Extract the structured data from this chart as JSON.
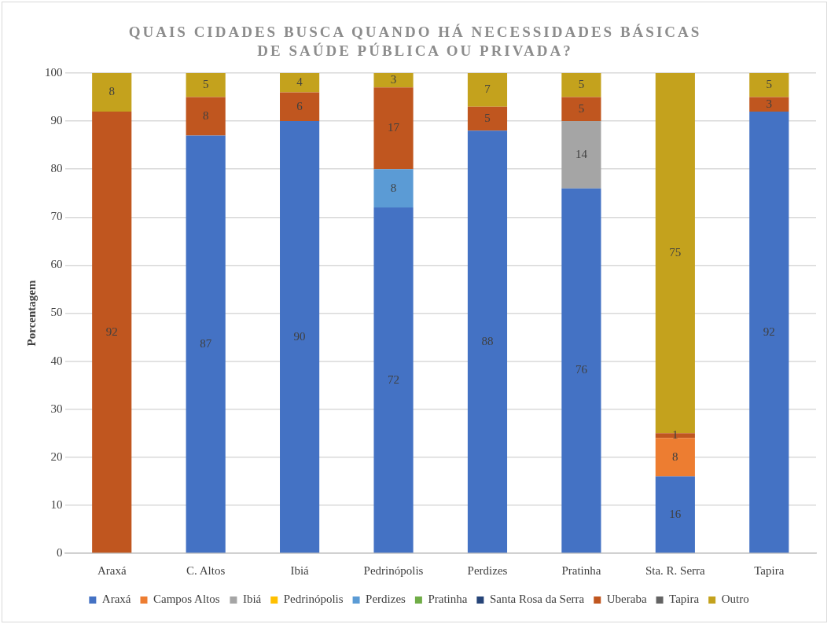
{
  "chart_data": {
    "type": "bar",
    "stacked": true,
    "title": "QUAIS CIDADES BUSCA QUANDO HÁ NECESSIDADES BÁSICAS DE SAÚDE PÚBLICA OU PRIVADA?",
    "ylabel": "Porcentagem",
    "categories": [
      "Araxá",
      "C. Altos",
      "Ibiá",
      "Pedrinópolis",
      "Perdizes",
      "Pratinha",
      "Sta. R. Serra",
      "Tapira"
    ],
    "series": [
      {
        "name": "Araxá",
        "color": "#4472c4",
        "values": [
          null,
          87,
          90,
          72,
          88,
          76,
          16,
          92
        ]
      },
      {
        "name": "Campos Altos",
        "color": "#ed7d31",
        "values": [
          null,
          null,
          null,
          null,
          null,
          null,
          8,
          null
        ]
      },
      {
        "name": "Ibiá",
        "color": "#a5a5a5",
        "values": [
          null,
          null,
          null,
          null,
          null,
          14,
          null,
          null
        ]
      },
      {
        "name": "Pedrinópolis",
        "color": "#ffc000",
        "values": [
          null,
          null,
          null,
          null,
          null,
          null,
          null,
          null
        ]
      },
      {
        "name": "Perdizes",
        "color": "#5b9bd5",
        "values": [
          null,
          null,
          null,
          8,
          null,
          null,
          null,
          null
        ]
      },
      {
        "name": "Pratinha",
        "color": "#70ad47",
        "values": [
          null,
          null,
          null,
          null,
          null,
          null,
          null,
          null
        ]
      },
      {
        "name": "Santa Rosa da Serra",
        "color": "#264478",
        "values": [
          null,
          null,
          null,
          null,
          null,
          null,
          null,
          null
        ]
      },
      {
        "name": "Uberaba",
        "color": "#c0561f",
        "values": [
          92,
          8,
          6,
          17,
          5,
          5,
          1,
          3
        ]
      },
      {
        "name": "Tapira",
        "color": "#636363",
        "values": [
          null,
          null,
          null,
          null,
          null,
          null,
          null,
          null
        ]
      },
      {
        "name": "Outro",
        "color": "#c4a21d",
        "values": [
          8,
          5,
          4,
          3,
          7,
          5,
          75,
          5
        ]
      }
    ],
    "ylim": [
      0,
      100
    ],
    "yticks": [
      0,
      10,
      20,
      30,
      40,
      50,
      60,
      70,
      80,
      90,
      100
    ],
    "grid": "y",
    "legend": "bottom",
    "data_labels": true
  }
}
